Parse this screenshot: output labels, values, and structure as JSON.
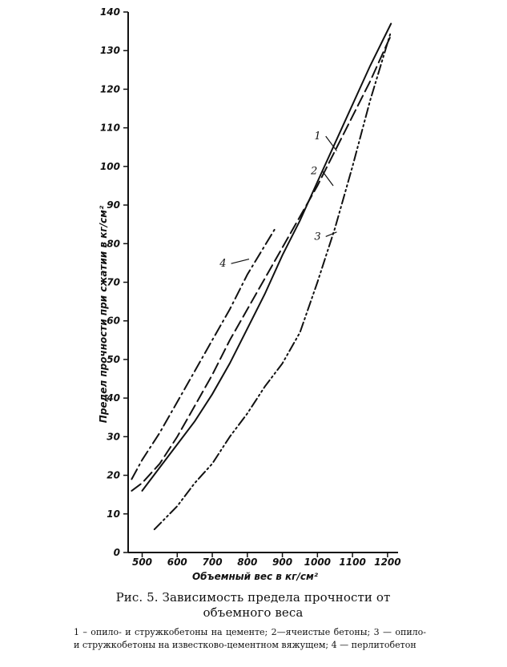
{
  "chart_data": {
    "type": "line",
    "xlabel": "Объемный вес в кг/см²",
    "ylabel": "Предел прочности при сжатии в кг/см²",
    "xlim": [
      460,
      1230
    ],
    "ylim": [
      0,
      140
    ],
    "x_ticks": [
      500,
      600,
      700,
      800,
      900,
      1000,
      1100,
      1200
    ],
    "y_ticks": [
      0,
      10,
      20,
      30,
      40,
      50,
      60,
      70,
      80,
      90,
      100,
      110,
      120,
      130,
      140
    ],
    "grid": false,
    "series": [
      {
        "name": "1",
        "line_style": "solid",
        "points": [
          [
            500,
            16
          ],
          [
            550,
            22
          ],
          [
            600,
            28
          ],
          [
            650,
            34
          ],
          [
            700,
            41
          ],
          [
            750,
            49
          ],
          [
            800,
            58
          ],
          [
            850,
            67
          ],
          [
            900,
            77
          ],
          [
            950,
            86
          ],
          [
            1000,
            96
          ],
          [
            1050,
            106
          ],
          [
            1100,
            116
          ],
          [
            1150,
            126
          ],
          [
            1210,
            137
          ]
        ]
      },
      {
        "name": "2",
        "line_style": "dashed",
        "points": [
          [
            470,
            16
          ],
          [
            500,
            18
          ],
          [
            550,
            23
          ],
          [
            600,
            30
          ],
          [
            650,
            38
          ],
          [
            700,
            46
          ],
          [
            750,
            55
          ],
          [
            800,
            63
          ],
          [
            850,
            71
          ],
          [
            900,
            79
          ],
          [
            950,
            87
          ],
          [
            1000,
            95
          ],
          [
            1050,
            104
          ],
          [
            1100,
            113
          ],
          [
            1150,
            122
          ],
          [
            1210,
            134
          ]
        ]
      },
      {
        "name": "3",
        "line_style": "dash-dot-dot",
        "points": [
          [
            535,
            6
          ],
          [
            600,
            12
          ],
          [
            650,
            18
          ],
          [
            700,
            23
          ],
          [
            750,
            30
          ],
          [
            800,
            36
          ],
          [
            850,
            43
          ],
          [
            900,
            49
          ],
          [
            950,
            57
          ],
          [
            1000,
            70
          ],
          [
            1050,
            84
          ],
          [
            1100,
            100
          ],
          [
            1150,
            117
          ],
          [
            1210,
            135
          ]
        ]
      },
      {
        "name": "4",
        "line_style": "dash-dot",
        "points": [
          [
            470,
            19
          ],
          [
            500,
            24
          ],
          [
            550,
            31
          ],
          [
            600,
            39
          ],
          [
            650,
            47
          ],
          [
            700,
            55
          ],
          [
            750,
            63
          ],
          [
            800,
            72
          ],
          [
            840,
            78
          ],
          [
            880,
            84
          ]
        ]
      }
    ],
    "annotations": [
      {
        "text": "1",
        "x": 1010,
        "y": 107,
        "target_x": 1055,
        "target_y": 104
      },
      {
        "text": "2",
        "x": 1000,
        "y": 98,
        "target_x": 1045,
        "target_y": 95
      },
      {
        "text": "3",
        "x": 1010,
        "y": 81,
        "target_x": 1055,
        "target_y": 83
      },
      {
        "text": "4",
        "x": 740,
        "y": 74,
        "target_x": 805,
        "target_y": 76
      }
    ]
  },
  "caption": {
    "title_line1": "Рис. 5. Зависимость предела прочности от",
    "title_line2": "объемного веса",
    "legend": "1 – опило- и стружкобетоны на цементе; 2—ячеистые бетоны; 3 — опило- и стружкобетоны на известково-цементном вяжущем; 4 — перлитобетон"
  }
}
